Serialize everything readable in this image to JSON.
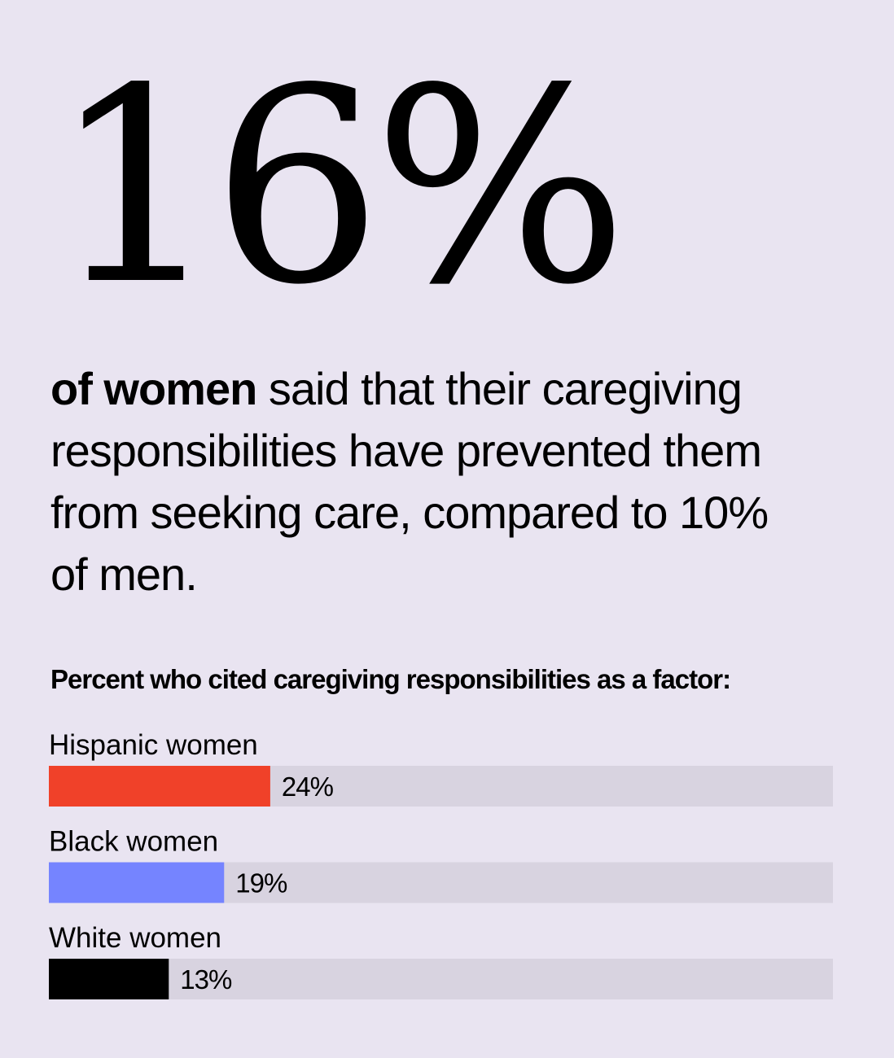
{
  "headline": {
    "stat": "16%",
    "lead": "of women",
    "text": "said that their caregiving responsibilities have prevented them from seeking care, compared to 10% of men."
  },
  "chart_data": {
    "type": "bar",
    "orientation": "horizontal",
    "title": "Percent who cited caregiving responsibilities as a factor:",
    "categories": [
      "Hispanic women",
      "Black women",
      "White women"
    ],
    "values": [
      24,
      19,
      13
    ],
    "value_labels": [
      "24%",
      "19%",
      "13%"
    ],
    "xlim": [
      0,
      85
    ],
    "colors": [
      "#f04129",
      "#7584ff",
      "#000000"
    ],
    "track_color": "#d8d3e0",
    "grid": false,
    "legend": "none"
  }
}
